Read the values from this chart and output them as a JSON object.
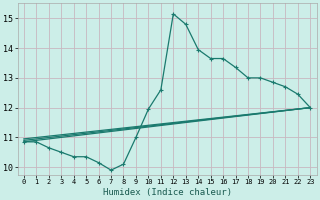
{
  "xlabel": "Humidex (Indice chaleur)",
  "bg_color": "#cceee8",
  "grid_color": "#c8b8c0",
  "line_color": "#1a7a6e",
  "xlim": [
    -0.5,
    23.5
  ],
  "ylim": [
    9.75,
    15.5
  ],
  "yticks": [
    10,
    11,
    12,
    13,
    14,
    15
  ],
  "line1_x": [
    0,
    1,
    2,
    3,
    4,
    5,
    6,
    7,
    8,
    9,
    10,
    11,
    12,
    13,
    14,
    15,
    16,
    17,
    18,
    19,
    20,
    21,
    22,
    23
  ],
  "line1_y": [
    10.85,
    10.85,
    10.65,
    10.5,
    10.35,
    10.35,
    10.15,
    9.9,
    10.1,
    11.0,
    11.95,
    12.6,
    15.15,
    14.8,
    13.95,
    13.65,
    13.65,
    13.35,
    13.0,
    13.0,
    12.85,
    12.7,
    12.45,
    12.0
  ],
  "line2_x": [
    0,
    23
  ],
  "line2_y": [
    10.85,
    12.0
  ],
  "line3_x": [
    0,
    23
  ],
  "line3_y": [
    10.9,
    12.0
  ],
  "line4_x": [
    0,
    23
  ],
  "line4_y": [
    10.95,
    12.0
  ]
}
